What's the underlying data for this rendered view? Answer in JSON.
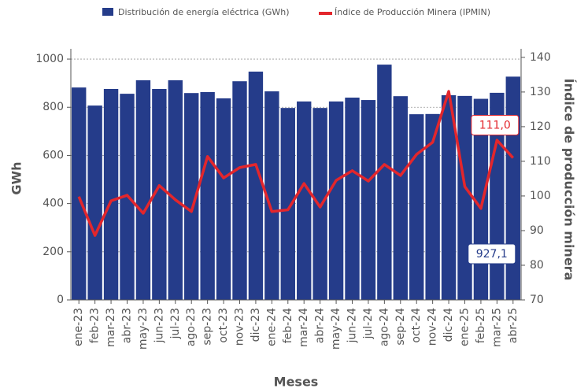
{
  "chart_data": {
    "type": "bar-line",
    "x_label": "Meses",
    "y_label": "GWh",
    "y2_label": "Índice de producción minera",
    "categories": [
      "ene-23",
      "feb-23",
      "mar-23",
      "abr-23",
      "may-23",
      "jun-23",
      "jul-23",
      "ago-23",
      "sep-23",
      "oct-23",
      "nov-23",
      "dic-23",
      "ene-24",
      "feb-24",
      "mar-24",
      "abr-24",
      "may-24",
      "jun-24",
      "jul-24",
      "ago-24",
      "sep-24",
      "oct-24",
      "nov-24",
      "dic-24",
      "ene-25",
      "feb-25",
      "mar-25",
      "abr-25"
    ],
    "series": [
      {
        "name": "Distribución de energía eléctrica (GWh)",
        "color": "#253c8a",
        "values": [
          882,
          807,
          876,
          856,
          912,
          876,
          912,
          859,
          863,
          837,
          908,
          948,
          866,
          797,
          824,
          797,
          824,
          840,
          830,
          977,
          846,
          771,
          772,
          850,
          847,
          835,
          860,
          927.1
        ],
        "value_labels": [
          null,
          null,
          null,
          null,
          null,
          null,
          null,
          null,
          null,
          null,
          null,
          null,
          null,
          null,
          null,
          null,
          null,
          null,
          null,
          null,
          null,
          null,
          null,
          null,
          null,
          null,
          null,
          "927,1"
        ]
      },
      {
        "name": "Índice de Producción Minera (IPMIN)",
        "color": "#e3262c",
        "axis": "y2",
        "values": [
          99.8,
          88.6,
          98.6,
          100.2,
          95,
          103,
          98.9,
          95.5,
          111.4,
          105.2,
          108.2,
          109.1,
          95.5,
          96,
          103.6,
          96.8,
          104.5,
          107.3,
          104.3,
          109.1,
          105.9,
          112,
          115.5,
          130.2,
          102.7,
          96.4,
          116.1,
          111.0
        ],
        "value_labels": [
          null,
          null,
          null,
          null,
          null,
          null,
          null,
          null,
          null,
          null,
          null,
          null,
          null,
          null,
          null,
          null,
          null,
          null,
          null,
          null,
          null,
          null,
          null,
          null,
          null,
          null,
          null,
          "111,0"
        ]
      }
    ],
    "ylim": [
      0,
      1010
    ],
    "yticks": [
      0,
      200,
      400,
      600,
      800,
      1000
    ],
    "y2lim": [
      70,
      140.2
    ],
    "y2ticks": [
      70,
      80,
      90,
      100,
      110,
      120,
      130,
      140
    ],
    "grid": true
  }
}
